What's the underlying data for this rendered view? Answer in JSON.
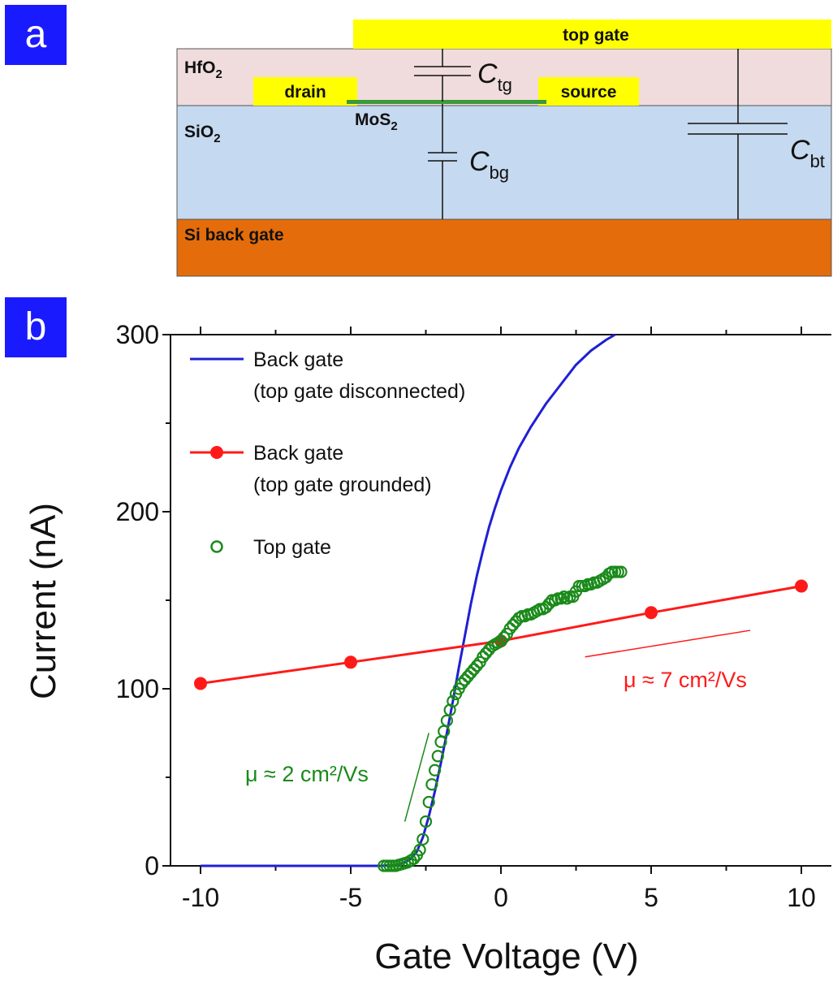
{
  "panel_a": {
    "letter": "a",
    "colors": {
      "hfo2": "#f0dcdc",
      "sio2": "#c5d9f0",
      "si": "#e46c0a",
      "metal": "#ffff00",
      "mos2": "#3a9a3a",
      "badge": "#1a1aff"
    },
    "labels": {
      "top_gate": "top gate",
      "hfo2_base": "HfO",
      "hfo2_sub": "2",
      "drain": "drain",
      "source": "source",
      "mos2_base": "MoS",
      "mos2_sub": "2",
      "sio2_base": "SiO",
      "sio2_sub": "2",
      "si": "Si back gate"
    },
    "capacitors": {
      "tg": {
        "base": "C",
        "sub": "tg"
      },
      "bg": {
        "base": "C",
        "sub": "bg"
      },
      "bt": {
        "base": "C",
        "sub": "bt"
      }
    }
  },
  "panel_b": {
    "letter": "b",
    "annotations": {
      "green_mu": "μ ≈ 2 cm²/Vs",
      "red_mu": "μ ≈ 7 cm²/Vs"
    },
    "legend": [
      {
        "line1": "Back gate",
        "line2": "(top gate disconnected)",
        "style": "line"
      },
      {
        "line1": "Back gate",
        "line2": "(top gate grounded)",
        "style": "line-marker"
      },
      {
        "line1": "Top gate",
        "line2": "",
        "style": "open-circle"
      }
    ]
  },
  "chart_data": {
    "type": "line",
    "title": "",
    "xlabel": "Gate Voltage (V)",
    "ylabel": "Current (nA)",
    "xlim": [
      -11,
      11
    ],
    "ylim": [
      0,
      300
    ],
    "xticks": [
      -10,
      -5,
      0,
      5,
      10
    ],
    "yticks": [
      0,
      100,
      200,
      300
    ],
    "grid": false,
    "legend_position": "top-left",
    "series": [
      {
        "name": "Back gate (top gate disconnected)",
        "color": "#1f1fd6",
        "style": "line",
        "x": [
          -10,
          -5,
          -4,
          -3.5,
          -3.2,
          -3.0,
          -2.8,
          -2.6,
          -2.4,
          -2.2,
          -2.0,
          -1.8,
          -1.6,
          -1.4,
          -1.2,
          -1.0,
          -0.8,
          -0.6,
          -0.4,
          -0.2,
          0,
          0.3,
          0.6,
          1.0,
          1.5,
          2.0,
          2.5,
          3.0,
          3.5,
          3.8
        ],
        "y": [
          0,
          0,
          0,
          0.5,
          2,
          4,
          8,
          16,
          28,
          42,
          58,
          75,
          93,
          112,
          130,
          148,
          164,
          178,
          191,
          202,
          212,
          225,
          236,
          248,
          261,
          272,
          283,
          291,
          297,
          300
        ]
      },
      {
        "name": "Back gate (top gate grounded)",
        "color": "#ff1a1a",
        "style": "line-marker",
        "x": [
          -10,
          -5,
          0,
          5,
          10
        ],
        "y": [
          103,
          115,
          127,
          143,
          158
        ]
      },
      {
        "name": "Top gate",
        "color": "#1a8a1a",
        "style": "open-circle",
        "x": [
          -3.9,
          -3.8,
          -3.7,
          -3.6,
          -3.5,
          -3.4,
          -3.3,
          -3.2,
          -3.1,
          -3.0,
          -2.9,
          -2.8,
          -2.7,
          -2.6,
          -2.5,
          -2.4,
          -2.3,
          -2.2,
          -2.1,
          -2.0,
          -1.9,
          -1.8,
          -1.7,
          -1.6,
          -1.5,
          -1.4,
          -1.3,
          -1.2,
          -1.1,
          -1.0,
          -0.9,
          -0.8,
          -0.7,
          -0.6,
          -0.5,
          -0.4,
          -0.3,
          -0.2,
          -0.1,
          0.0,
          0.1,
          0.2,
          0.3,
          0.4,
          0.5,
          0.6,
          0.7,
          0.8,
          0.9,
          1.0,
          1.1,
          1.2,
          1.3,
          1.4,
          1.5,
          1.6,
          1.7,
          1.8,
          1.9,
          2.0,
          2.1,
          2.2,
          2.3,
          2.4,
          2.5,
          2.6,
          2.7,
          2.8,
          2.9,
          3.0,
          3.1,
          3.2,
          3.3,
          3.4,
          3.5,
          3.6,
          3.7,
          3.8,
          3.9,
          4.0
        ],
        "y": [
          0,
          0,
          0,
          0,
          0,
          0.5,
          1,
          1.5,
          2,
          3,
          4,
          6,
          9,
          15,
          25,
          36,
          46,
          54,
          62,
          70,
          76,
          82,
          88,
          93,
          97,
          100,
          103,
          105,
          107,
          109,
          111,
          113,
          115,
          118,
          120,
          122,
          124,
          125,
          126,
          127,
          129,
          131,
          134,
          136,
          138,
          140,
          141,
          141,
          142,
          142,
          143,
          144,
          145,
          145,
          146,
          148,
          150,
          150,
          151,
          151,
          152,
          151,
          152,
          152,
          155,
          158,
          158,
          158,
          159,
          159,
          160,
          160,
          161,
          162,
          163,
          165,
          166,
          166,
          166,
          166
        ]
      }
    ]
  }
}
